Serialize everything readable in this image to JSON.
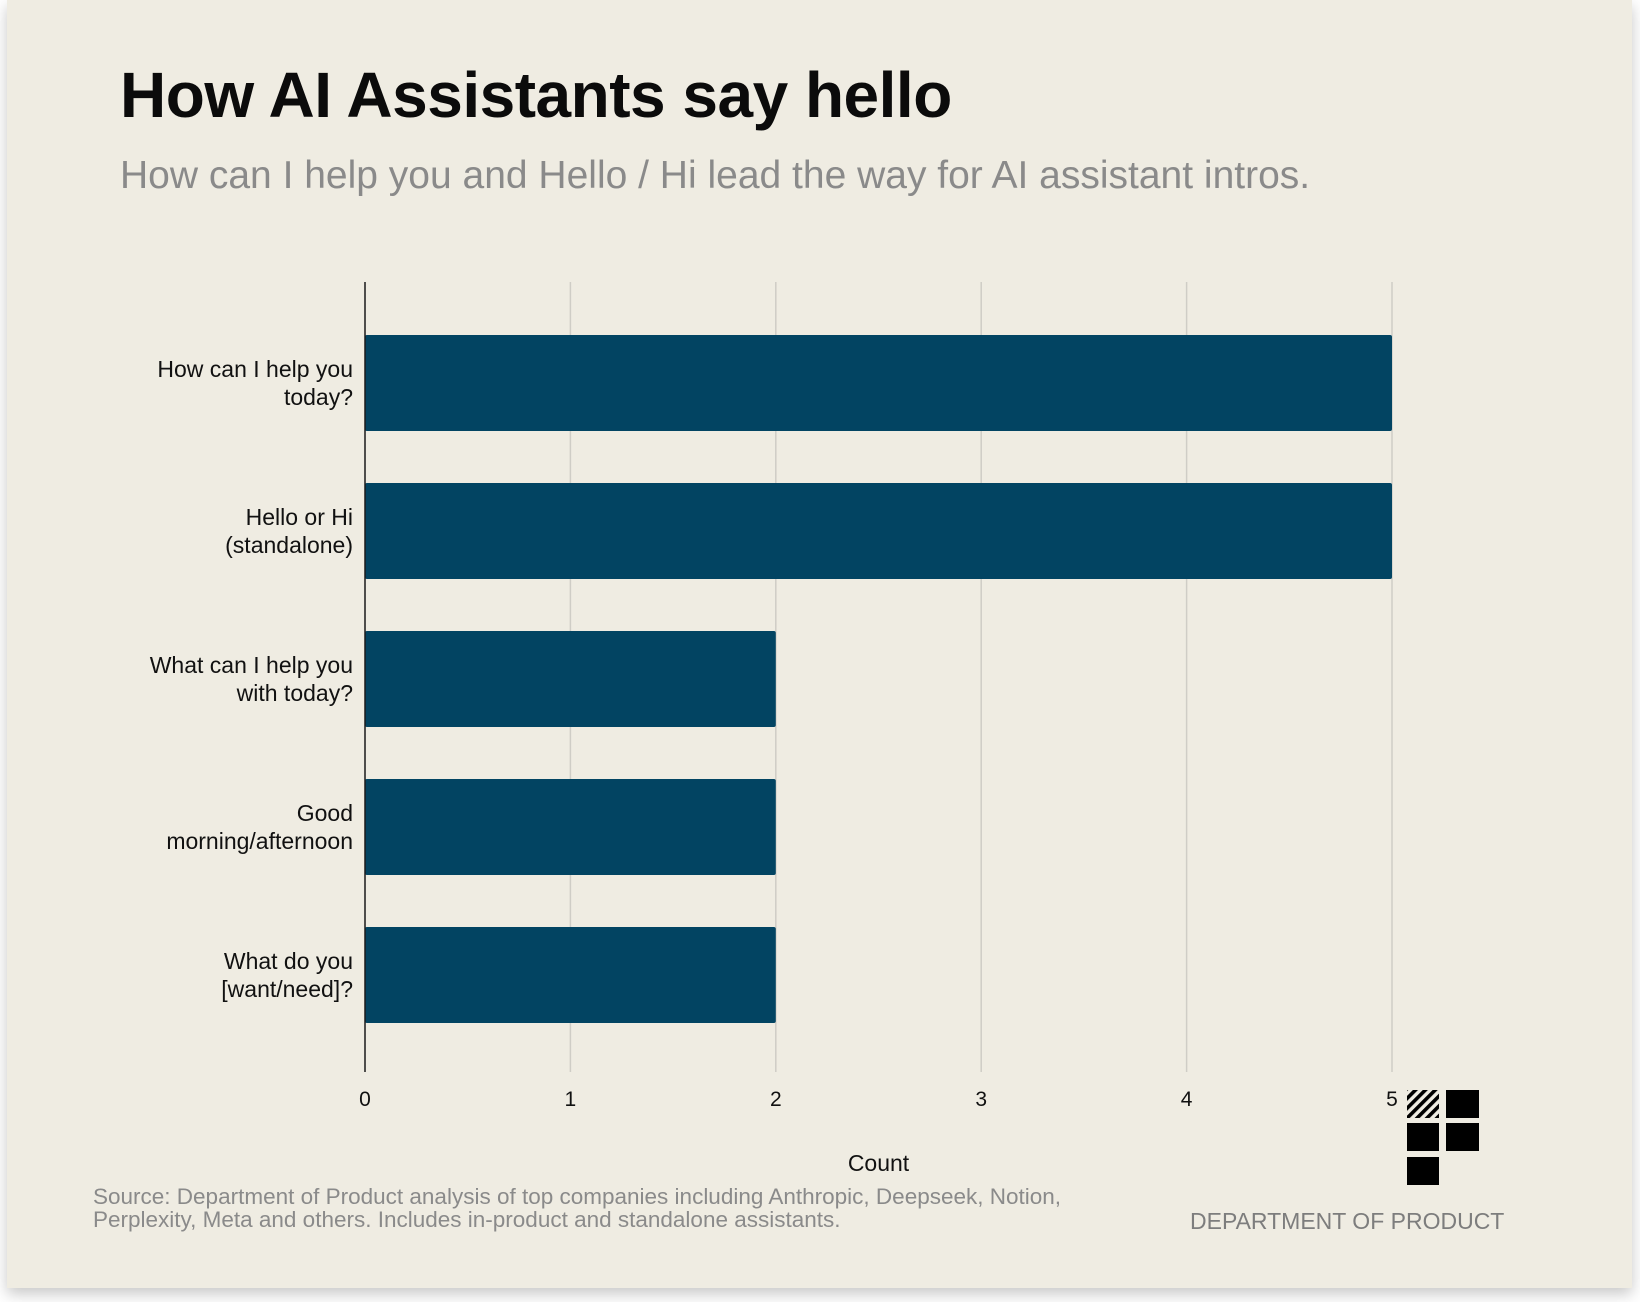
{
  "header": {
    "title": "How AI Assistants say hello",
    "subtitle": "How can I help you and Hello / Hi lead the way for AI assistant intros."
  },
  "chart_data": {
    "type": "bar",
    "orientation": "horizontal",
    "categories": [
      [
        "How can I help you",
        "today?"
      ],
      [
        "Hello or Hi",
        "(standalone)"
      ],
      [
        "What can I help you",
        "with today?"
      ],
      [
        "Good",
        "morning/afternoon"
      ],
      [
        "What do you",
        "[want/need]?"
      ]
    ],
    "values": [
      5,
      5,
      2,
      2,
      2
    ],
    "xlabel": "Count",
    "ylabel": "",
    "xlim": [
      0,
      5
    ],
    "xticks": [
      "0",
      "1",
      "2",
      "3",
      "4",
      "5"
    ],
    "grid": "vertical",
    "bar_color": "#024462"
  },
  "footer": {
    "source": "Source: Department of Product analysis of top companies including Anthropic, Deepseek, Notion, Perplexity, Meta and others. Includes in-product and standalone assistants.",
    "brand": "DEPARTMENT OF PRODUCT",
    "logo_icon": "department-of-product-logo-icon"
  }
}
